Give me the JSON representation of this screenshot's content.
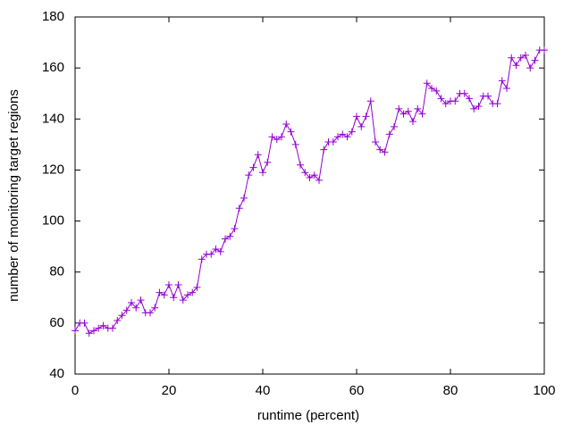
{
  "chart_data": {
    "type": "line",
    "xlabel": "runtime (percent)",
    "ylabel": "number of monitoring target regions",
    "x": [
      0,
      1,
      2,
      3,
      4,
      5,
      6,
      7,
      8,
      9,
      10,
      11,
      12,
      13,
      14,
      15,
      16,
      17,
      18,
      19,
      20,
      21,
      22,
      23,
      24,
      25,
      26,
      27,
      28,
      29,
      30,
      31,
      32,
      33,
      34,
      35,
      36,
      37,
      38,
      39,
      40,
      41,
      42,
      43,
      44,
      45,
      46,
      47,
      48,
      49,
      50,
      51,
      52,
      53,
      54,
      55,
      56,
      57,
      58,
      59,
      60,
      61,
      62,
      63,
      64,
      65,
      66,
      67,
      68,
      69,
      70,
      71,
      72,
      73,
      74,
      75,
      76,
      77,
      78,
      79,
      80,
      81,
      82,
      83,
      84,
      85,
      86,
      87,
      88,
      89,
      90,
      91,
      92,
      93,
      94,
      95,
      96,
      97,
      98,
      99,
      100
    ],
    "series": [
      {
        "color": "#9400d3",
        "values": [
          57,
          60,
          60,
          56,
          57,
          58,
          59,
          58,
          58,
          61,
          63,
          65,
          68,
          66,
          69,
          64,
          64,
          66,
          72,
          71,
          75,
          70,
          75,
          69,
          71,
          72,
          74,
          85,
          87,
          87,
          89,
          88,
          93,
          94,
          97,
          105,
          109,
          118,
          121,
          126,
          119,
          123,
          133,
          132,
          133,
          138,
          135,
          130,
          122,
          119,
          117,
          118,
          116,
          128,
          131,
          131,
          133,
          134,
          133,
          135,
          141,
          137,
          141,
          147,
          131,
          128,
          127,
          134,
          137,
          144,
          142,
          143,
          139,
          144,
          142,
          154,
          152,
          151,
          148,
          146,
          147,
          147,
          150,
          150,
          148,
          144,
          145,
          149,
          149,
          146,
          146,
          155,
          152,
          164,
          161,
          164,
          165,
          160,
          163,
          167,
          167
        ]
      }
    ],
    "xlim": [
      0,
      100
    ],
    "xticks": [
      0,
      20,
      40,
      60,
      80,
      100
    ],
    "ylim": [
      40,
      180
    ],
    "yticks": [
      40,
      60,
      80,
      100,
      120,
      140,
      160,
      180
    ]
  }
}
